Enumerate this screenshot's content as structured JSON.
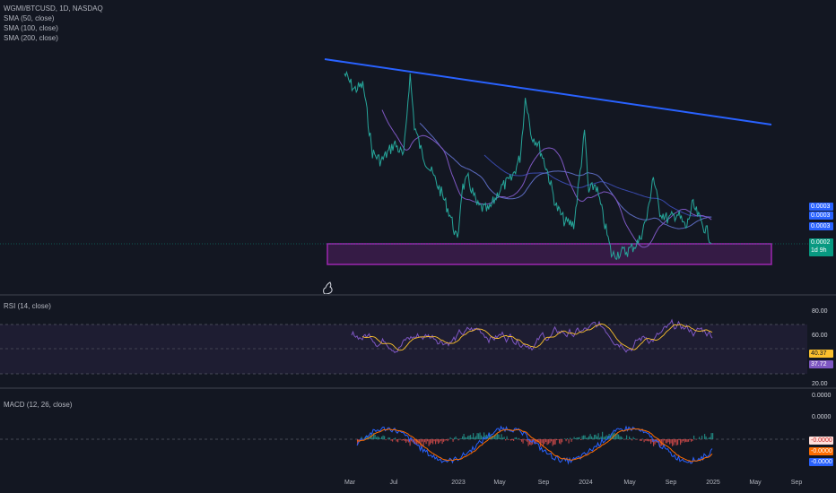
{
  "header": {
    "symbol_line": "WGMI/BTCUSD, 1D, NASDAQ",
    "indicators": [
      "SMA (50, close)",
      "SMA (100, close)",
      "SMA (200, close)"
    ]
  },
  "price_axis": {
    "tags": [
      {
        "text": "0.0003",
        "color": "#2962ff"
      },
      {
        "text": "0.0003",
        "color": "#2962ff"
      },
      {
        "text": "0.0003",
        "color": "#2962ff"
      }
    ],
    "last_price": {
      "text": "0.0002",
      "subtext": "1d 9h",
      "color": "#089981"
    }
  },
  "rsi": {
    "title": "RSI (14, close)",
    "levels": [
      "80.00",
      "60.00",
      "20.00"
    ],
    "value_tags": [
      {
        "text": "40.37",
        "color": "#fbc02d"
      },
      {
        "text": "37.72",
        "color": "#7e57c2"
      }
    ]
  },
  "macd": {
    "title": "MACD (12, 26, close)",
    "levels": [
      "0.0000",
      "0.0000"
    ],
    "value_tags": [
      {
        "text": "-0.0000",
        "color": "#ef5350",
        "bg": "#ffe0db"
      },
      {
        "text": "-0.0000",
        "color": "#ff6d00",
        "bg": "#ff6d00"
      },
      {
        "text": "-0.0000",
        "color": "#2962ff",
        "bg": "#2962ff"
      }
    ]
  },
  "time_axis": {
    "labels": [
      "Mar",
      "Jul",
      "2023",
      "May",
      "Sep",
      "2024",
      "May",
      "Sep",
      "2025",
      "May",
      "Sep"
    ]
  },
  "colors": {
    "background": "#131722",
    "price_line": "#26a69a",
    "trendline": "#2962ff",
    "support_box": "#9c27b0",
    "sma": "#3949ab",
    "rsi_line": "#7e57c2",
    "rsi_ma": "#fbc02d",
    "macd_line": "#2962ff",
    "signal_line": "#ff6d00"
  },
  "icons": [
    "tradingview-logo-icon"
  ]
}
